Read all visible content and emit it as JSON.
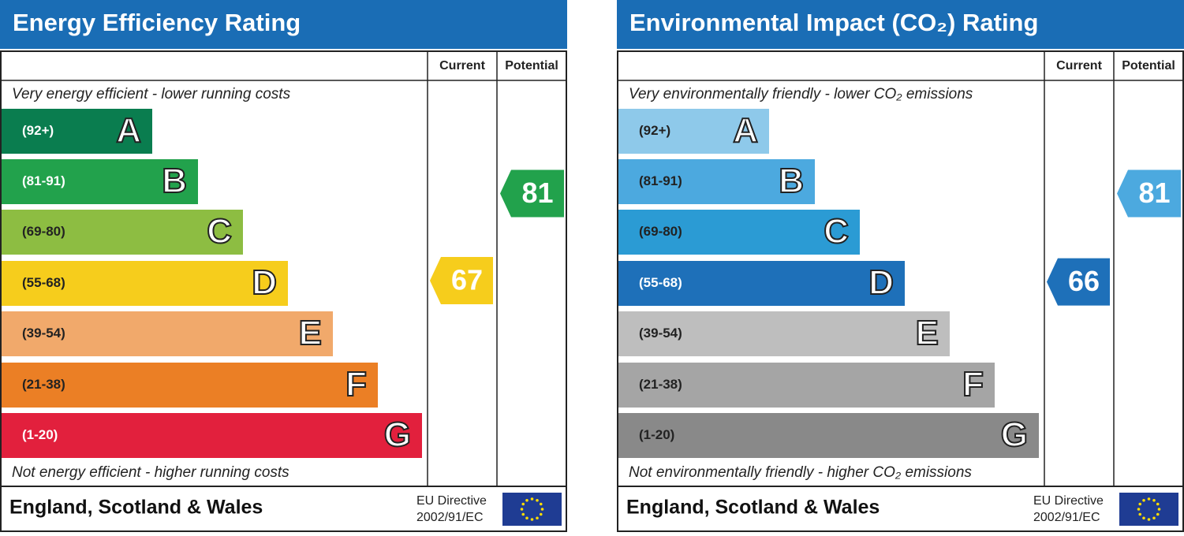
{
  "panels": [
    {
      "title": "Energy Efficiency Rating",
      "headers": [
        "Current",
        "Potential"
      ],
      "top_text": "Very energy efficient - lower running costs",
      "bottom_text": "Not energy efficient - higher running costs",
      "bands": [
        {
          "range": "(92+)",
          "letter": "A",
          "color": "#0a7d4f"
        },
        {
          "range": "(81-91)",
          "letter": "B",
          "color": "#22a24c"
        },
        {
          "range": "(69-80)",
          "letter": "C",
          "color": "#8dbd42"
        },
        {
          "range": "(55-68)",
          "letter": "D",
          "color": "#f6cd1c"
        },
        {
          "range": "(39-54)",
          "letter": "E",
          "color": "#f1a96b"
        },
        {
          "range": "(21-38)",
          "letter": "F",
          "color": "#eb7f25"
        },
        {
          "range": "(1-20)",
          "letter": "G",
          "color": "#e2203d"
        }
      ],
      "current": {
        "value": 67,
        "color": "#f6cd1c"
      },
      "potential": {
        "value": 81,
        "color": "#22a24c"
      },
      "footer": {
        "region": "England, Scotland & Wales",
        "directive": [
          "EU Directive",
          "2002/91/EC"
        ]
      }
    },
    {
      "title": "Environmental Impact (CO₂) Rating",
      "headers": [
        "Current",
        "Potential"
      ],
      "top_text": "Very environmentally friendly - lower CO₂ emissions",
      "bottom_text": "Not environmentally friendly - higher CO₂ emissions",
      "bands": [
        {
          "range": "(92+)",
          "letter": "A",
          "color": "#8ec9ea"
        },
        {
          "range": "(81-91)",
          "letter": "B",
          "color": "#4ca9df"
        },
        {
          "range": "(69-80)",
          "letter": "C",
          "color": "#2b9bd4"
        },
        {
          "range": "(55-68)",
          "letter": "D",
          "color": "#1e70b9"
        },
        {
          "range": "(39-54)",
          "letter": "E",
          "color": "#bebebe"
        },
        {
          "range": "(21-38)",
          "letter": "F",
          "color": "#a5a5a5"
        },
        {
          "range": "(1-20)",
          "letter": "G",
          "color": "#898989"
        }
      ],
      "current": {
        "value": 66,
        "color": "#1e70b9"
      },
      "potential": {
        "value": 81,
        "color": "#4ca9df"
      },
      "footer": {
        "region": "England, Scotland & Wales",
        "directive": [
          "EU Directive",
          "2002/91/EC"
        ]
      }
    }
  ]
}
